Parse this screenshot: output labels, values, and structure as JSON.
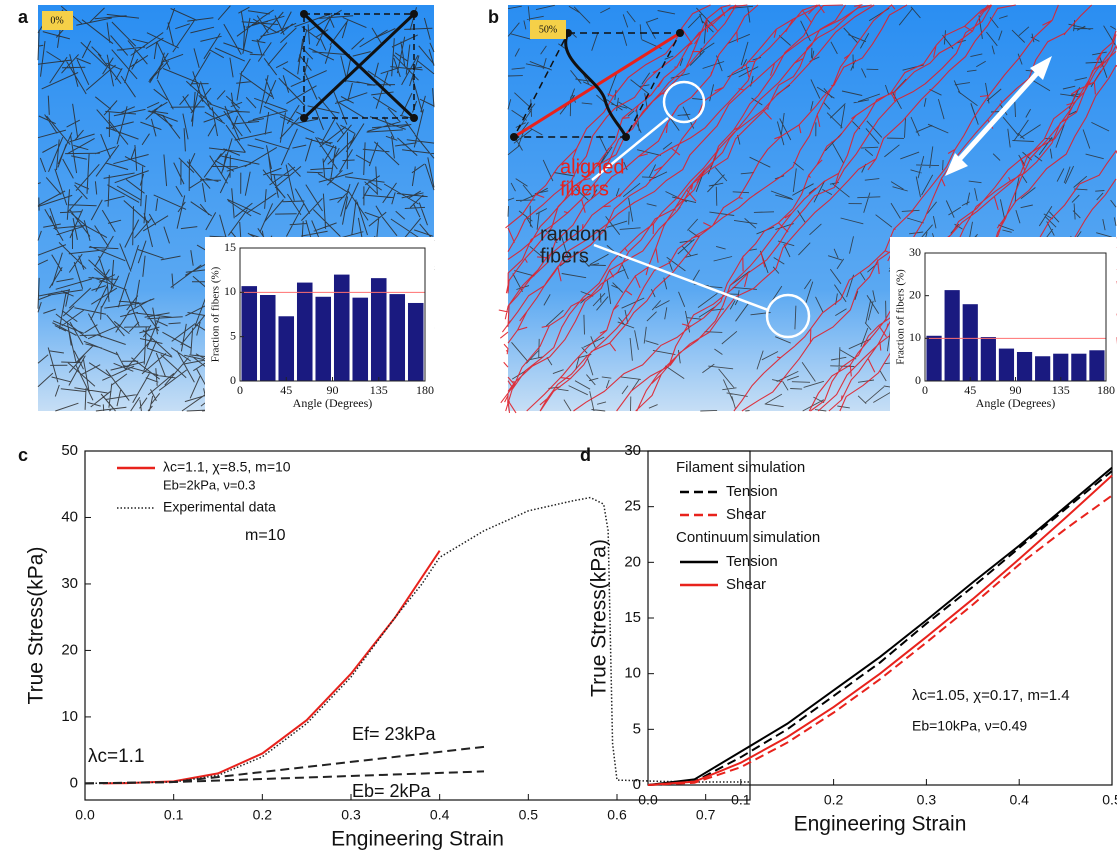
{
  "chart_data": [
    {
      "type": "histogram",
      "panel": "a",
      "image_label": "0%",
      "xlabel": "Angle (Degrees)",
      "ylabel": "Fraction of fibers (%)",
      "bins": [
        0,
        18,
        36,
        54,
        72,
        90,
        108,
        126,
        144,
        162,
        180
      ],
      "values": [
        10.7,
        9.7,
        7.3,
        11.1,
        9.5,
        12.0,
        9.4,
        11.6,
        9.8,
        8.8
      ],
      "color": "#1a1a80",
      "reference": 10,
      "reference_color": "#ff7070",
      "xlim": [
        0,
        180
      ],
      "ylim": [
        0,
        15
      ],
      "xticks": [
        0,
        45,
        90,
        135,
        180
      ],
      "yticks": [
        0,
        5,
        10,
        15
      ]
    },
    {
      "type": "histogram",
      "panel": "b",
      "image_label": "50%",
      "annotations": [
        [
          "aligned",
          "fibers"
        ],
        [
          "random",
          "fibers"
        ]
      ],
      "xlabel": "Angle (Degrees)",
      "ylabel": "Fraction of fibers (%)",
      "bins": [
        0,
        18,
        36,
        54,
        72,
        90,
        108,
        126,
        144,
        162,
        180
      ],
      "values": [
        10.6,
        21.3,
        18.0,
        10.3,
        7.6,
        6.8,
        5.8,
        6.4,
        6.4,
        7.2
      ],
      "color": "#1a1a80",
      "reference": 10,
      "reference_color": "#ff7070",
      "xlim": [
        0,
        180
      ],
      "ylim": [
        0,
        30
      ],
      "xticks": [
        0,
        45,
        90,
        135,
        180
      ],
      "yticks": [
        0,
        10,
        20,
        30
      ]
    },
    {
      "type": "line",
      "panel": "c",
      "xlabel": "Engineering Strain",
      "ylabel": "True Stress(kPa)",
      "xlim": [
        0,
        0.75
      ],
      "ylim": [
        -2.5,
        50
      ],
      "xticks": [
        {
          "value": 0,
          "label": "0.0"
        },
        0.1,
        0.2,
        0.3,
        0.4,
        0.5,
        0.6,
        0.7
      ],
      "yticks": [
        0,
        10,
        20,
        30,
        40,
        50
      ],
      "legend_note": "Eb=2kPa, ν=0.3",
      "annotations": [
        "m=10",
        "λc=1.1"
      ],
      "series": [
        {
          "name": "λc=1.1, χ=8.5, m=10",
          "color": "#e8221c",
          "style": "solid",
          "legend": true,
          "x": [
            0.02,
            0.05,
            0.1,
            0.15,
            0.2,
            0.25,
            0.3,
            0.35,
            0.4
          ],
          "values": [
            0,
            0.05,
            0.3,
            1.5,
            4.5,
            9.5,
            16.5,
            25,
            35
          ]
        },
        {
          "name": "Experimental data",
          "color": "#222222",
          "style": "dotted",
          "legend": true,
          "x": [
            0,
            0.1,
            0.15,
            0.2,
            0.25,
            0.3,
            0.35,
            0.38,
            0.4,
            0.45,
            0.5,
            0.55,
            0.57,
            0.585,
            0.59,
            0.595,
            0.6,
            0.65,
            0.7,
            0.75
          ],
          "values": [
            0,
            0.2,
            1.2,
            4,
            9,
            16,
            25,
            30,
            34,
            38,
            41,
            42.5,
            43,
            42,
            38,
            6,
            0.5,
            0.3,
            0.2,
            0.2
          ]
        },
        {
          "name": "Ef= 23kPa",
          "color": "#222222",
          "style": "dashed",
          "legend": false,
          "x": [
            0,
            0.1,
            0.45
          ],
          "values": [
            0,
            0.2,
            5.5
          ]
        },
        {
          "name": "Eb= 2kPa",
          "color": "#222222",
          "style": "dashed",
          "legend": false,
          "x": [
            0,
            0.1,
            0.45
          ],
          "values": [
            0,
            0.2,
            1.8
          ]
        }
      ]
    },
    {
      "type": "line",
      "panel": "d",
      "xlabel": "Engineering Strain",
      "ylabel": "True Stress(kPa)",
      "xlim": [
        0,
        0.5
      ],
      "ylim": [
        0,
        30
      ],
      "xticks": [
        {
          "value": 0,
          "label": "0.0"
        },
        0.1,
        0.2,
        0.3,
        0.4,
        0.5
      ],
      "yticks": [
        0,
        5,
        10,
        15,
        20,
        25,
        30
      ],
      "legend_titles": [
        "Filament simulation",
        "Continuum simulation"
      ],
      "annotations": [
        "λc=1.05, χ=0.17, m=1.4",
        "Eb=10kPa, ν=0.49"
      ],
      "series": [
        {
          "name": "Tension",
          "color": "#000000",
          "style": "dashed",
          "legend": true,
          "x": [
            0,
            0.05,
            0.1,
            0.15,
            0.2,
            0.25,
            0.3,
            0.35,
            0.4,
            0.45,
            0.5
          ],
          "values": [
            0,
            0.3,
            2.5,
            5,
            8,
            11,
            14.5,
            17.8,
            21.3,
            24.8,
            28.2
          ]
        },
        {
          "name": "Shear",
          "color": "#e8221c",
          "style": "dashed",
          "legend": true,
          "x": [
            0,
            0.05,
            0.1,
            0.15,
            0.2,
            0.25,
            0.3,
            0.35,
            0.4,
            0.45,
            0.5
          ],
          "values": [
            0,
            0.2,
            1.6,
            3.8,
            6.5,
            9.5,
            12.8,
            16.2,
            19.8,
            23,
            26
          ]
        },
        {
          "name": "Tension",
          "color": "#000000",
          "style": "solid",
          "legend": true,
          "x": [
            0,
            0.05,
            0.1,
            0.15,
            0.2,
            0.25,
            0.3,
            0.35,
            0.4,
            0.45,
            0.5
          ],
          "values": [
            0,
            0.5,
            3,
            5.5,
            8.5,
            11.5,
            14.8,
            18.2,
            21.5,
            25,
            28.5
          ]
        },
        {
          "name": "Shear",
          "color": "#e8221c",
          "style": "solid",
          "legend": true,
          "x": [
            0,
            0.05,
            0.1,
            0.15,
            0.2,
            0.25,
            0.3,
            0.35,
            0.4,
            0.45,
            0.5
          ],
          "values": [
            0,
            0.3,
            2,
            4.3,
            7,
            10,
            13.3,
            16.7,
            20.3,
            24,
            27.8
          ]
        }
      ]
    }
  ]
}
